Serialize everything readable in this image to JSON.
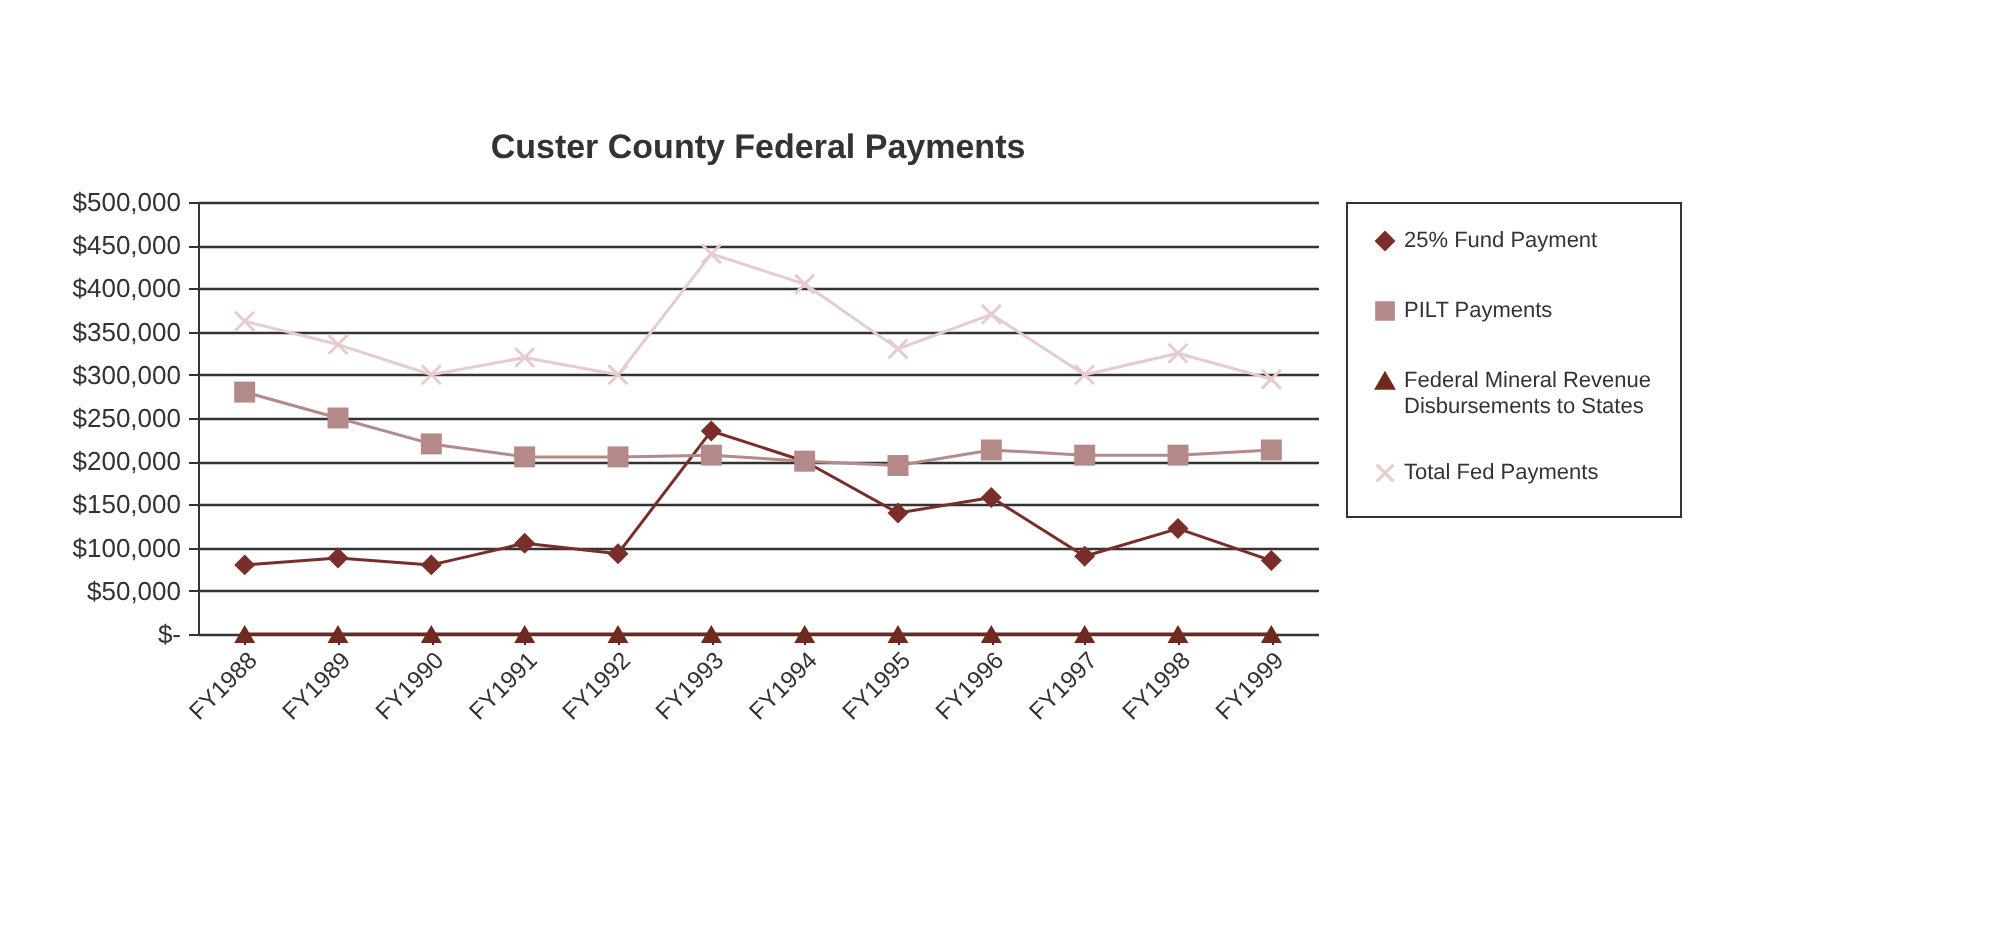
{
  "chart_data": {
    "type": "line",
    "title": "Custer County Federal Payments",
    "categories": [
      "FY1988",
      "FY1989",
      "FY1990",
      "FY1991",
      "FY1992",
      "FY1993",
      "FY1994",
      "FY1995",
      "FY1996",
      "FY1997",
      "FY1998",
      "FY1999"
    ],
    "series": [
      {
        "name": "25% Fund Payment",
        "color": "#7a2e2a",
        "marker": "diamond",
        "values": [
          80000,
          88000,
          80000,
          105000,
          93000,
          235000,
          200000,
          140000,
          158000,
          90000,
          122000,
          85000
        ]
      },
      {
        "name": "PILT Payments",
        "color": "#b48a88",
        "marker": "square",
        "values": [
          280000,
          250000,
          220000,
          205000,
          205000,
          207000,
          200000,
          195000,
          213000,
          207000,
          207000,
          213000
        ]
      },
      {
        "name": "Federal Mineral Revenue Disbursements to States",
        "color": "#6e2a1e",
        "marker": "triangle",
        "values": [
          0,
          0,
          0,
          0,
          0,
          0,
          0,
          0,
          0,
          0,
          0,
          0
        ]
      },
      {
        "name": "Total Fed Payments",
        "color": "#e6cccc",
        "marker": "cross",
        "values": [
          362000,
          335000,
          300000,
          320000,
          300000,
          440000,
          405000,
          330000,
          370000,
          300000,
          325000,
          295000
        ]
      }
    ],
    "ylim": [
      0,
      500000
    ],
    "yticks": [
      {
        "value": 0,
        "label": "$-"
      },
      {
        "value": 50000,
        "label": "$50,000"
      },
      {
        "value": 100000,
        "label": "$100,000"
      },
      {
        "value": 150000,
        "label": "$150,000"
      },
      {
        "value": 200000,
        "label": "$200,000"
      },
      {
        "value": 250000,
        "label": "$250,000"
      },
      {
        "value": 300000,
        "label": "$300,000"
      },
      {
        "value": 350000,
        "label": "$350,000"
      },
      {
        "value": 400000,
        "label": "$400,000"
      },
      {
        "value": 450000,
        "label": "$450,000"
      },
      {
        "value": 500000,
        "label": "$500,000"
      }
    ],
    "grid": "y",
    "legend": "right"
  }
}
